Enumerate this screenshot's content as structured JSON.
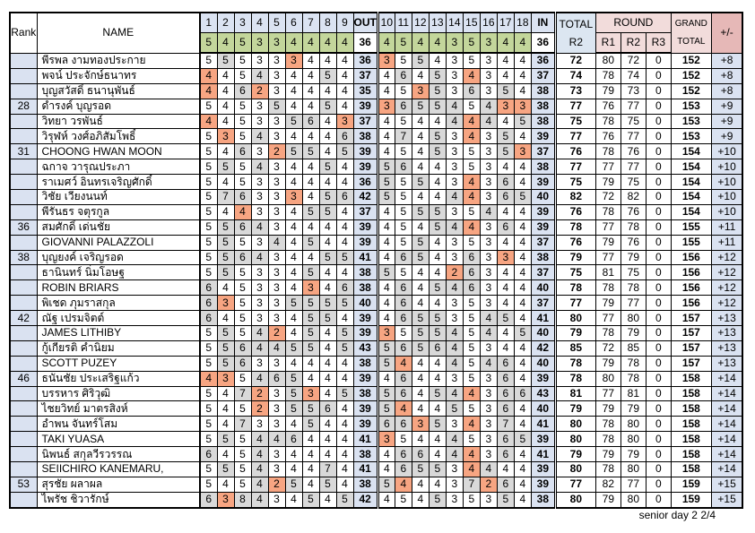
{
  "header": {
    "rank_label": "Rank",
    "name_label": "NAME",
    "out_holes": [
      "1",
      "2",
      "3",
      "4",
      "5",
      "6",
      "7",
      "8",
      "9"
    ],
    "out_label": "OUT",
    "in_holes": [
      "10",
      "11",
      "12",
      "13",
      "14",
      "15",
      "16",
      "17",
      "18"
    ],
    "in_label": "IN",
    "par_out": [
      5,
      4,
      5,
      3,
      3,
      4,
      4,
      4,
      4
    ],
    "par_out_total": 36,
    "par_in": [
      4,
      5,
      4,
      4,
      3,
      5,
      3,
      4,
      4
    ],
    "par_in_total": 36,
    "total_label": "TOTAL",
    "total_sub": "R2",
    "round_label": "ROUND",
    "round_subs": [
      "R1",
      "R2",
      "R3"
    ],
    "grand_label": "GRAND",
    "grand_sub": "TOTAL",
    "plusminus_label": "+/-"
  },
  "colors": {
    "header_blue": "#dbe3f2",
    "total_blue": "#dce6f1",
    "cell_blue": "#dae2f1",
    "par_green": "#c3d69b",
    "round_pink": "#f2dcdb",
    "plusminus_red": "#e6b8b7",
    "under_par": "#f7a582",
    "over_par": "#d9d9d9"
  },
  "rows": [
    {
      "rank": "",
      "name": "พีรพล งามทองประกาย",
      "out": [
        5,
        5,
        5,
        3,
        3,
        3,
        4,
        4,
        4
      ],
      "out_total": 36,
      "in": [
        3,
        5,
        5,
        4,
        3,
        5,
        3,
        4,
        4
      ],
      "in_total": 36,
      "total_r2": 72,
      "r1": 80,
      "r2": 72,
      "r3": 0,
      "grand_total": 152,
      "plus_minus": "+8"
    },
    {
      "rank": "",
      "name": "พจน์ ประจักษ์ธนาทร",
      "out": [
        4,
        4,
        5,
        4,
        3,
        4,
        4,
        5,
        4
      ],
      "out_total": 37,
      "in": [
        4,
        6,
        4,
        5,
        3,
        4,
        3,
        4,
        4
      ],
      "in_total": 37,
      "total_r2": 74,
      "r1": 78,
      "r2": 74,
      "r3": 0,
      "grand_total": 152,
      "plus_minus": "+8"
    },
    {
      "rank": "",
      "name": "บุญสวัสดิ์ ธนานุพันธ์",
      "out": [
        4,
        4,
        6,
        2,
        3,
        4,
        4,
        4,
        4
      ],
      "out_total": 35,
      "in": [
        4,
        5,
        3,
        5,
        3,
        6,
        3,
        5,
        4
      ],
      "in_total": 38,
      "total_r2": 73,
      "r1": 79,
      "r2": 73,
      "r3": 0,
      "grand_total": 152,
      "plus_minus": "+8"
    },
    {
      "rank": "28",
      "name": "ดำรงค์ บุญรอด",
      "out": [
        5,
        4,
        5,
        3,
        5,
        4,
        4,
        5,
        4
      ],
      "out_total": 39,
      "in": [
        3,
        6,
        5,
        5,
        4,
        5,
        4,
        3,
        3
      ],
      "in_total": 38,
      "total_r2": 77,
      "r1": 76,
      "r2": 77,
      "r3": 0,
      "grand_total": 153,
      "plus_minus": "+9"
    },
    {
      "rank": "",
      "name": "วิทยา วรพันธ์",
      "out": [
        4,
        4,
        5,
        3,
        3,
        5,
        6,
        4,
        3
      ],
      "out_total": 37,
      "in": [
        4,
        5,
        4,
        4,
        4,
        4,
        4,
        4,
        5
      ],
      "in_total": 38,
      "total_r2": 75,
      "r1": 78,
      "r2": 75,
      "r3": 0,
      "grand_total": 153,
      "plus_minus": "+9"
    },
    {
      "rank": "",
      "name": "วิรุฬห์ วงศ์อภิสัมโพธิ์",
      "out": [
        5,
        3,
        5,
        4,
        3,
        4,
        4,
        4,
        6
      ],
      "out_total": 38,
      "in": [
        4,
        7,
        4,
        5,
        3,
        4,
        3,
        5,
        4
      ],
      "in_total": 39,
      "total_r2": 77,
      "r1": 76,
      "r2": 77,
      "r3": 0,
      "grand_total": 153,
      "plus_minus": "+9"
    },
    {
      "rank": "31",
      "name": "CHOONG HWAN MOON",
      "out": [
        5,
        4,
        6,
        3,
        2,
        5,
        5,
        4,
        5
      ],
      "out_total": 39,
      "in": [
        4,
        5,
        4,
        5,
        3,
        5,
        3,
        5,
        3
      ],
      "in_total": 37,
      "total_r2": 76,
      "r1": 78,
      "r2": 76,
      "r3": 0,
      "grand_total": 154,
      "plus_minus": "+10"
    },
    {
      "rank": "",
      "name": "ฉกาจ วารุณประภา",
      "out": [
        5,
        5,
        5,
        4,
        3,
        4,
        4,
        5,
        4
      ],
      "out_total": 39,
      "in": [
        5,
        6,
        4,
        4,
        3,
        5,
        3,
        4,
        4
      ],
      "in_total": 38,
      "total_r2": 77,
      "r1": 77,
      "r2": 77,
      "r3": 0,
      "grand_total": 154,
      "plus_minus": "+10"
    },
    {
      "rank": "",
      "name": "ราเมศว์ อินทรเจริญศักดิ์",
      "out": [
        5,
        4,
        5,
        3,
        3,
        4,
        4,
        4,
        4
      ],
      "out_total": 36,
      "in": [
        5,
        5,
        5,
        4,
        3,
        4,
        3,
        6,
        4
      ],
      "in_total": 39,
      "total_r2": 75,
      "r1": 79,
      "r2": 75,
      "r3": 0,
      "grand_total": 154,
      "plus_minus": "+10"
    },
    {
      "rank": "",
      "name": "วิชัย เวียงนนท์",
      "out": [
        5,
        7,
        6,
        3,
        3,
        3,
        4,
        5,
        6
      ],
      "out_total": 42,
      "in": [
        5,
        5,
        4,
        4,
        4,
        4,
        3,
        6,
        5
      ],
      "in_total": 40,
      "total_r2": 82,
      "r1": 72,
      "r2": 82,
      "r3": 0,
      "grand_total": 154,
      "plus_minus": "+10"
    },
    {
      "rank": "",
      "name": "พีรันธร จตุรกูล",
      "out": [
        5,
        4,
        4,
        3,
        3,
        4,
        5,
        5,
        4
      ],
      "out_total": 37,
      "in": [
        4,
        5,
        5,
        5,
        3,
        5,
        4,
        4,
        4
      ],
      "in_total": 39,
      "total_r2": 76,
      "r1": 78,
      "r2": 76,
      "r3": 0,
      "grand_total": 154,
      "plus_minus": "+10"
    },
    {
      "rank": "36",
      "name": "สมศักดิ์ เด่นชัย",
      "out": [
        5,
        5,
        6,
        4,
        3,
        4,
        4,
        4,
        4
      ],
      "out_total": 39,
      "in": [
        4,
        5,
        4,
        5,
        4,
        4,
        3,
        6,
        4
      ],
      "in_total": 39,
      "total_r2": 78,
      "r1": 77,
      "r2": 78,
      "r3": 0,
      "grand_total": 155,
      "plus_minus": "+11"
    },
    {
      "rank": "",
      "name": "GIOVANNI PALAZZOLI",
      "out": [
        5,
        5,
        5,
        3,
        4,
        4,
        5,
        4,
        4
      ],
      "out_total": 39,
      "in": [
        4,
        5,
        5,
        4,
        3,
        5,
        3,
        4,
        4
      ],
      "in_total": 37,
      "total_r2": 76,
      "r1": 79,
      "r2": 76,
      "r3": 0,
      "grand_total": 155,
      "plus_minus": "+11"
    },
    {
      "rank": "38",
      "name": "บุญยงค์ เจริญรอด",
      "out": [
        5,
        5,
        6,
        4,
        3,
        4,
        4,
        5,
        5
      ],
      "out_total": 41,
      "in": [
        4,
        6,
        5,
        4,
        3,
        6,
        3,
        3,
        4
      ],
      "in_total": 38,
      "total_r2": 79,
      "r1": 77,
      "r2": 79,
      "r3": 0,
      "grand_total": 156,
      "plus_minus": "+12"
    },
    {
      "rank": "",
      "name": "ธานินทร์ นิ่มโอษฐ",
      "out": [
        5,
        5,
        5,
        3,
        3,
        4,
        5,
        4,
        4
      ],
      "out_total": 38,
      "in": [
        5,
        5,
        4,
        4,
        2,
        6,
        3,
        4,
        4
      ],
      "in_total": 37,
      "total_r2": 75,
      "r1": 81,
      "r2": 75,
      "r3": 0,
      "grand_total": 156,
      "plus_minus": "+12"
    },
    {
      "rank": "",
      "name": "ROBIN BRIARS",
      "out": [
        6,
        4,
        5,
        3,
        3,
        4,
        3,
        4,
        6
      ],
      "out_total": 38,
      "in": [
        4,
        6,
        4,
        5,
        4,
        6,
        3,
        4,
        4
      ],
      "in_total": 40,
      "total_r2": 78,
      "r1": 78,
      "r2": 78,
      "r3": 0,
      "grand_total": 156,
      "plus_minus": "+12"
    },
    {
      "rank": "",
      "name": "พิเชด ภุมราสกุล",
      "out": [
        6,
        3,
        5,
        3,
        3,
        5,
        5,
        5,
        5
      ],
      "out_total": 40,
      "in": [
        4,
        6,
        4,
        4,
        3,
        5,
        3,
        4,
        4
      ],
      "in_total": 37,
      "total_r2": 77,
      "r1": 79,
      "r2": 77,
      "r3": 0,
      "grand_total": 156,
      "plus_minus": "+12"
    },
    {
      "rank": "42",
      "name": "ณัฐ เปรมจิตต์",
      "out": [
        6,
        4,
        5,
        3,
        3,
        4,
        5,
        5,
        4
      ],
      "out_total": 39,
      "in": [
        4,
        6,
        5,
        5,
        3,
        5,
        4,
        5,
        4
      ],
      "in_total": 41,
      "total_r2": 80,
      "r1": 77,
      "r2": 80,
      "r3": 0,
      "grand_total": 157,
      "plus_minus": "+13"
    },
    {
      "rank": "",
      "name": "JAMES LITHIBY",
      "out": [
        5,
        5,
        5,
        4,
        2,
        4,
        5,
        4,
        5
      ],
      "out_total": 39,
      "in": [
        3,
        5,
        5,
        5,
        4,
        5,
        4,
        4,
        5
      ],
      "in_total": 40,
      "total_r2": 79,
      "r1": 78,
      "r2": 79,
      "r3": 0,
      "grand_total": 157,
      "plus_minus": "+13"
    },
    {
      "rank": "",
      "name": "กู้เกียรติ คำนิยม",
      "out": [
        5,
        5,
        6,
        4,
        4,
        5,
        5,
        4,
        5
      ],
      "out_total": 43,
      "in": [
        5,
        6,
        5,
        6,
        4,
        5,
        3,
        4,
        4
      ],
      "in_total": 42,
      "total_r2": 85,
      "r1": 72,
      "r2": 85,
      "r3": 0,
      "grand_total": 157,
      "plus_minus": "+13"
    },
    {
      "rank": "",
      "name": "SCOTT PUZEY",
      "out": [
        5,
        5,
        6,
        3,
        3,
        4,
        4,
        4,
        4
      ],
      "out_total": 38,
      "in": [
        5,
        4,
        4,
        4,
        4,
        5,
        4,
        6,
        4
      ],
      "in_total": 40,
      "total_r2": 78,
      "r1": 79,
      "r2": 78,
      "r3": 0,
      "grand_total": 157,
      "plus_minus": "+13"
    },
    {
      "rank": "46",
      "name": "ธนันชัย ประเสริฐแก้ว",
      "out": [
        4,
        3,
        5,
        4,
        6,
        5,
        4,
        4,
        4
      ],
      "out_total": 39,
      "in": [
        4,
        6,
        4,
        4,
        3,
        5,
        3,
        6,
        4
      ],
      "in_total": 39,
      "total_r2": 78,
      "r1": 80,
      "r2": 78,
      "r3": 0,
      "grand_total": 158,
      "plus_minus": "+14"
    },
    {
      "rank": "",
      "name": "บรรหาร ศิริวุฒิ",
      "out": [
        5,
        4,
        7,
        2,
        3,
        5,
        3,
        4,
        5
      ],
      "out_total": 38,
      "in": [
        5,
        6,
        4,
        5,
        4,
        4,
        3,
        6,
        6
      ],
      "in_total": 43,
      "total_r2": 81,
      "r1": 77,
      "r2": 81,
      "r3": 0,
      "grand_total": 158,
      "plus_minus": "+14"
    },
    {
      "rank": "",
      "name": "ไชยวิทย์ มาตรสิงห์",
      "out": [
        5,
        4,
        5,
        2,
        3,
        5,
        5,
        6,
        4
      ],
      "out_total": 39,
      "in": [
        5,
        4,
        4,
        4,
        5,
        5,
        3,
        6,
        4
      ],
      "in_total": 40,
      "total_r2": 79,
      "r1": 79,
      "r2": 79,
      "r3": 0,
      "grand_total": 158,
      "plus_minus": "+14"
    },
    {
      "rank": "",
      "name": "อำพน จันทร์โสม",
      "out": [
        5,
        4,
        7,
        3,
        3,
        4,
        5,
        4,
        4
      ],
      "out_total": 39,
      "in": [
        6,
        6,
        3,
        5,
        3,
        4,
        3,
        7,
        4
      ],
      "in_total": 41,
      "total_r2": 80,
      "r1": 78,
      "r2": 80,
      "r3": 0,
      "grand_total": 158,
      "plus_minus": "+14"
    },
    {
      "rank": "",
      "name": "TAKI YUASA",
      "out": [
        5,
        5,
        5,
        4,
        4,
        6,
        4,
        4,
        4
      ],
      "out_total": 41,
      "in": [
        3,
        5,
        4,
        4,
        4,
        5,
        3,
        6,
        5
      ],
      "in_total": 39,
      "total_r2": 80,
      "r1": 78,
      "r2": 80,
      "r3": 0,
      "grand_total": 158,
      "plus_minus": "+14"
    },
    {
      "rank": "",
      "name": "นิพนธ์ สกุลวีรวรรณ",
      "out": [
        6,
        4,
        5,
        4,
        3,
        4,
        4,
        4,
        4
      ],
      "out_total": 38,
      "in": [
        4,
        6,
        6,
        4,
        4,
        4,
        3,
        6,
        4
      ],
      "in_total": 41,
      "total_r2": 79,
      "r1": 79,
      "r2": 79,
      "r3": 0,
      "grand_total": 158,
      "plus_minus": "+14"
    },
    {
      "rank": "",
      "name": "SEIICHIRO KANEMARU,",
      "out": [
        5,
        5,
        5,
        4,
        3,
        4,
        4,
        7,
        4
      ],
      "out_total": 41,
      "in": [
        4,
        6,
        5,
        5,
        3,
        4,
        4,
        4,
        4
      ],
      "in_total": 39,
      "total_r2": 80,
      "r1": 78,
      "r2": 80,
      "r3": 0,
      "grand_total": 158,
      "plus_minus": "+14"
    },
    {
      "rank": "53",
      "name": "สุรชัย ผลาผล",
      "out": [
        5,
        4,
        5,
        4,
        2,
        5,
        4,
        5,
        4
      ],
      "out_total": 38,
      "in": [
        5,
        4,
        4,
        4,
        3,
        7,
        2,
        6,
        4
      ],
      "in_total": 39,
      "total_r2": 77,
      "r1": 82,
      "r2": 77,
      "r3": 0,
      "grand_total": 159,
      "plus_minus": "+15"
    },
    {
      "rank": "",
      "name": "ไพรัช ชิวารักษ์",
      "out": [
        6,
        3,
        8,
        4,
        3,
        4,
        5,
        4,
        5
      ],
      "out_total": 42,
      "in": [
        4,
        5,
        4,
        5,
        3,
        5,
        3,
        5,
        4
      ],
      "in_total": 38,
      "total_r2": 80,
      "r1": 79,
      "r2": 80,
      "r3": 0,
      "grand_total": 159,
      "plus_minus": "+15"
    }
  ],
  "footer": "senior day 2  2/4"
}
